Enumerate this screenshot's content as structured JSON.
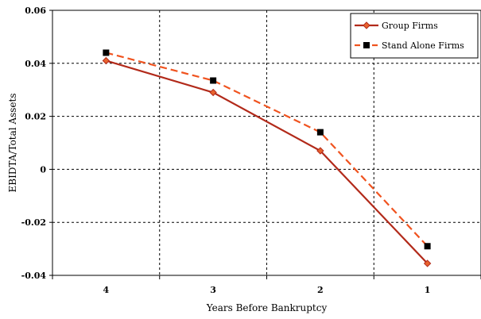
{
  "chart_data": {
    "type": "line",
    "title": "",
    "xlabel": "Years Before Bankruptcy",
    "ylabel": "EBIDTA/Total Assets",
    "categories": [
      "4",
      "3",
      "2",
      "1"
    ],
    "ylim": [
      -0.04,
      0.06
    ],
    "yticks": [
      -0.04,
      -0.02,
      0,
      0.02,
      0.04,
      0.06
    ],
    "ytick_labels": [
      "-0.04",
      "-0.02",
      "0",
      "0.02",
      "0.04",
      "0.06"
    ],
    "grid": true,
    "legend_position": "top-right",
    "series": [
      {
        "name": "Group Firms",
        "values": [
          0.041,
          0.029,
          0.007,
          -0.0355
        ],
        "color": "#b22a1a",
        "marker": "diamond",
        "marker_color": "#e8632e",
        "line_style": "solid"
      },
      {
        "name": "Stand Alone Firms",
        "values": [
          0.044,
          0.0335,
          0.014,
          -0.029
        ],
        "color": "#f0531f",
        "marker": "square",
        "marker_color": "#000000",
        "line_style": "dashed"
      }
    ]
  }
}
